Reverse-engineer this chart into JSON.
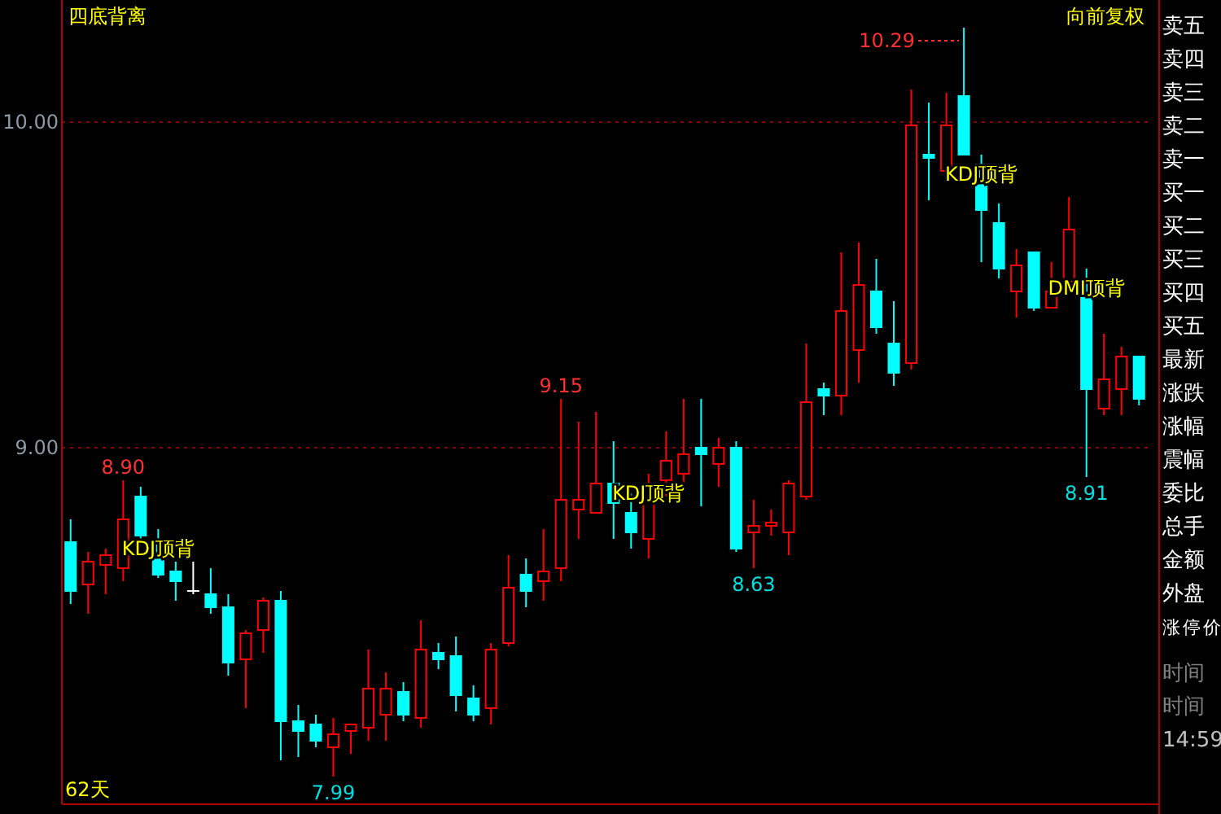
{
  "chart_data": {
    "type": "candlestick",
    "title": "四底背离",
    "categories": [
      null,
      null,
      null,
      null,
      null,
      null,
      null,
      null,
      null,
      null,
      null,
      null,
      null,
      null,
      null,
      null,
      null,
      null,
      null,
      null,
      null,
      null,
      null,
      null,
      null,
      null,
      null,
      null,
      null,
      null,
      null,
      null,
      null,
      null,
      null,
      null,
      null,
      null,
      null,
      null,
      null,
      null,
      null,
      null,
      null,
      null,
      null,
      null,
      null,
      null,
      null,
      null,
      null,
      null,
      null,
      null,
      null,
      null,
      null,
      null,
      null,
      null
    ],
    "ohlc": [
      [
        8.71,
        8.78,
        8.52,
        8.56
      ],
      [
        8.58,
        8.68,
        8.49,
        8.65
      ],
      [
        8.64,
        8.69,
        8.55,
        8.67
      ],
      [
        8.63,
        8.9,
        8.59,
        8.78
      ],
      [
        8.85,
        8.88,
        8.72,
        8.73
      ],
      [
        8.7,
        8.75,
        8.6,
        8.61
      ],
      [
        8.62,
        8.65,
        8.53,
        8.59
      ],
      [
        8.56,
        8.65,
        8.55,
        8.56
      ],
      [
        8.55,
        8.63,
        8.49,
        8.51
      ],
      [
        8.51,
        8.55,
        8.3,
        8.34
      ],
      [
        8.35,
        8.44,
        8.2,
        8.43
      ],
      [
        8.44,
        8.54,
        8.37,
        8.53
      ],
      [
        8.53,
        8.56,
        8.04,
        8.16
      ],
      [
        8.16,
        8.21,
        8.05,
        8.13
      ],
      [
        8.15,
        8.18,
        8.08,
        8.1
      ],
      [
        8.08,
        8.17,
        7.99,
        8.12
      ],
      [
        8.13,
        8.15,
        8.06,
        8.15
      ],
      [
        8.14,
        8.38,
        8.1,
        8.26
      ],
      [
        8.18,
        8.31,
        8.1,
        8.26
      ],
      [
        8.25,
        8.28,
        8.16,
        8.18
      ],
      [
        8.17,
        8.47,
        8.14,
        8.38
      ],
      [
        8.37,
        8.4,
        8.32,
        8.35
      ],
      [
        8.36,
        8.42,
        8.19,
        8.24
      ],
      [
        8.23,
        8.27,
        8.16,
        8.18
      ],
      [
        8.2,
        8.4,
        8.15,
        8.38
      ],
      [
        8.4,
        8.67,
        8.39,
        8.57
      ],
      [
        8.61,
        8.66,
        8.51,
        8.56
      ],
      [
        8.59,
        8.75,
        8.53,
        8.62
      ],
      [
        8.63,
        9.15,
        8.59,
        8.84
      ],
      [
        8.81,
        9.08,
        8.72,
        8.84
      ],
      [
        8.8,
        9.11,
        8.8,
        8.89
      ],
      [
        8.89,
        9.02,
        8.72,
        8.83
      ],
      [
        8.8,
        8.86,
        8.69,
        8.74
      ],
      [
        8.72,
        8.92,
        8.66,
        8.88
      ],
      [
        8.9,
        9.05,
        8.85,
        8.96
      ],
      [
        8.92,
        9.15,
        8.89,
        8.98
      ],
      [
        9.0,
        9.15,
        8.82,
        8.98
      ],
      [
        8.95,
        9.03,
        8.88,
        9.0
      ],
      [
        9.0,
        9.02,
        8.68,
        8.69
      ],
      [
        8.74,
        8.84,
        8.63,
        8.76
      ],
      [
        8.76,
        8.81,
        8.73,
        8.77
      ],
      [
        8.74,
        8.9,
        8.67,
        8.89
      ],
      [
        8.85,
        9.32,
        8.84,
        9.14
      ],
      [
        9.18,
        9.2,
        9.1,
        9.16
      ],
      [
        9.16,
        9.6,
        9.1,
        9.42
      ],
      [
        9.3,
        9.63,
        9.2,
        9.5
      ],
      [
        9.48,
        9.58,
        9.35,
        9.37
      ],
      [
        9.32,
        9.45,
        9.19,
        9.23
      ],
      [
        9.26,
        10.1,
        9.24,
        9.99
      ],
      [
        9.9,
        10.06,
        9.76,
        9.89
      ],
      [
        9.85,
        10.09,
        9.85,
        9.99
      ],
      [
        10.08,
        10.29,
        9.9,
        9.9
      ],
      [
        9.87,
        9.9,
        9.57,
        9.73
      ],
      [
        9.69,
        9.75,
        9.52,
        9.55
      ],
      [
        9.48,
        9.61,
        9.4,
        9.56
      ],
      [
        9.6,
        9.6,
        9.42,
        9.43
      ],
      [
        9.43,
        9.57,
        9.43,
        9.48
      ],
      [
        9.51,
        9.77,
        9.5,
        9.67
      ],
      [
        9.51,
        9.55,
        8.91,
        9.18
      ],
      [
        9.12,
        9.35,
        9.1,
        9.21
      ],
      [
        9.18,
        9.31,
        9.1,
        9.28
      ],
      [
        9.28,
        9.28,
        9.13,
        9.15
      ]
    ],
    "colors": [
      "#00ffff",
      "#ff0000",
      "#ff0000",
      "#ff0000",
      "#00ffff",
      "#00ffff",
      "#00ffff",
      "#ffffff",
      "#00ffff",
      "#00ffff",
      "#ff0000",
      "#ff0000",
      "#00ffff",
      "#00ffff",
      "#00ffff",
      "#ff0000",
      "#ff0000",
      "#ff0000",
      "#ff0000",
      "#00ffff",
      "#ff0000",
      "#00ffff",
      "#00ffff",
      "#00ffff",
      "#ff0000",
      "#ff0000",
      "#00ffff",
      "#ff0000",
      "#ff0000",
      "#ff0000",
      "#ff0000",
      "#00ffff",
      "#00ffff",
      "#ff0000",
      "#ff0000",
      "#ff0000",
      "#00ffff",
      "#ff0000",
      "#00ffff",
      "#ff0000",
      "#ff0000",
      "#ff0000",
      "#ff0000",
      "#00ffff",
      "#ff0000",
      "#ff0000",
      "#00ffff",
      "#00ffff",
      "#ff0000",
      "#00ffff",
      "#ff0000",
      "#00ffff",
      "#00ffff",
      "#00ffff",
      "#ff0000",
      "#00ffff",
      "#ff0000",
      "#ff0000",
      "#00ffff",
      "#ff0000",
      "#ff0000",
      "#00ffff"
    ],
    "ylim": [
      7.905,
      10.375
    ],
    "yticks": [
      {
        "value": 9,
        "label": "9.00"
      },
      {
        "value": 10,
        "label": "10.00"
      }
    ],
    "grid": "y",
    "annotations": [
      "向前复权",
      "62天",
      "卖五",
      "卖四",
      "卖三",
      "卖二",
      "卖一",
      "买一",
      "买二",
      "买三",
      "买四",
      "买五",
      "最新",
      "涨跌",
      "涨幅",
      "震幅",
      "委比",
      "总手",
      "金额",
      "外盘",
      "涨停价",
      "时间",
      "时间",
      "14:59",
      "8.90",
      "9.15",
      "10.29",
      "7.99",
      "8.63",
      "8.91",
      "KDJ顶背",
      "KDJ顶背",
      "KDJ顶背",
      "DMI顶背"
    ]
  }
}
